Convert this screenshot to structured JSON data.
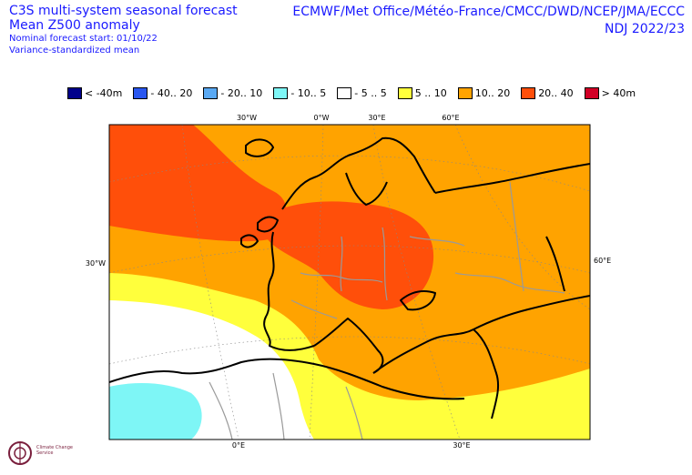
{
  "header": {
    "title_line1": "C3S multi-system seasonal forecast",
    "title_line2": "Mean Z500 anomaly",
    "start_line": "Nominal forecast start: 01/10/22",
    "method_line": "Variance-standardized mean",
    "centres": "ECMWF/Met Office/Météo-France/CMCC/DWD/NCEP/JMA/ECCC",
    "period": "NDJ 2022/23"
  },
  "legend": [
    {
      "label": "< -40m",
      "color": "#00008b"
    },
    {
      "label": "- 40.. 20",
      "color": "#2a57f0"
    },
    {
      "label": "- 20.. 10",
      "color": "#5aa9f3"
    },
    {
      "label": "- 10.. 5",
      "color": "#7ef6f6"
    },
    {
      "label": "- 5 .. 5",
      "color": "#ffffff"
    },
    {
      "label": "5 .. 10",
      "color": "#ffff3c"
    },
    {
      "label": "10.. 20",
      "color": "#ffa300"
    },
    {
      "label": "20.. 40",
      "color": "#ff4f0a"
    },
    {
      "label": "> 40m",
      "color": "#d10026"
    }
  ],
  "axis_labels": {
    "top": [
      "30°W",
      "0°W",
      "30°E",
      "60°E"
    ],
    "left": "30°W",
    "right": "60°E",
    "bottom": [
      "0°E",
      "30°E"
    ]
  },
  "logo_text": "Climate Change Service"
}
